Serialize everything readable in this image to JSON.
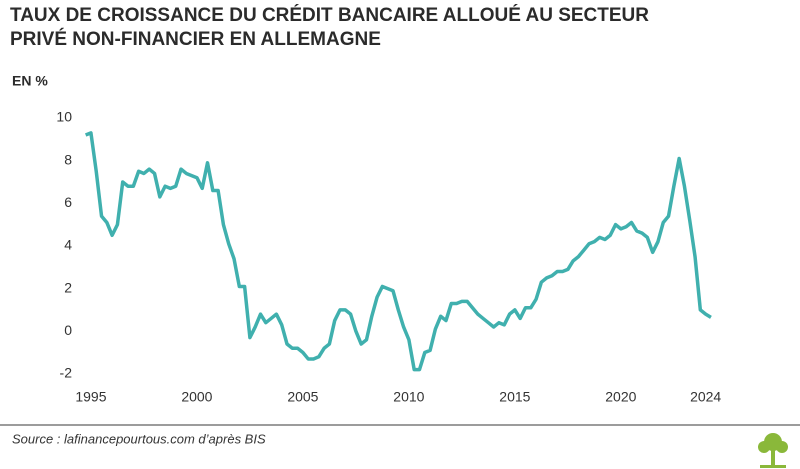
{
  "chart_data": {
    "type": "line",
    "title": "TAUX DE CROISSANCE DU CRÉDIT BANCAIRE ALLOUÉ AU SECTEUR PRIVÉ NON-FINANCIER EN ALLEMAGNE",
    "y_label": "EN %",
    "source": "Source : lafinancepourtous.com d’après BIS",
    "x": [
      1994.75,
      1995,
      1995.25,
      1995.5,
      1995.75,
      1996,
      1996.25,
      1996.5,
      1996.75,
      1997,
      1997.25,
      1997.5,
      1997.75,
      1998,
      1998.25,
      1998.5,
      1998.75,
      1999,
      1999.25,
      1999.5,
      1999.75,
      2000,
      2000.25,
      2000.5,
      2000.75,
      2001,
      2001.25,
      2001.5,
      2001.75,
      2002,
      2002.25,
      2002.5,
      2002.75,
      2003,
      2003.25,
      2003.5,
      2003.75,
      2004,
      2004.25,
      2004.5,
      2004.75,
      2005,
      2005.25,
      2005.5,
      2005.75,
      2006,
      2006.25,
      2006.5,
      2006.75,
      2007,
      2007.25,
      2007.5,
      2007.75,
      2008,
      2008.25,
      2008.5,
      2008.75,
      2009,
      2009.25,
      2009.5,
      2009.75,
      2010,
      2010.25,
      2010.5,
      2010.75,
      2011,
      2011.25,
      2011.5,
      2011.75,
      2012,
      2012.25,
      2012.5,
      2012.75,
      2013,
      2013.25,
      2013.5,
      2013.75,
      2014,
      2014.25,
      2014.5,
      2014.75,
      2015,
      2015.25,
      2015.5,
      2015.75,
      2016,
      2016.25,
      2016.5,
      2016.75,
      2017,
      2017.25,
      2017.5,
      2017.75,
      2018,
      2018.25,
      2018.5,
      2018.75,
      2019,
      2019.25,
      2019.5,
      2019.75,
      2020,
      2020.25,
      2020.5,
      2020.75,
      2021,
      2021.25,
      2021.5,
      2021.75,
      2022,
      2022.25,
      2022.5,
      2022.75,
      2023,
      2023.25,
      2023.5,
      2023.75,
      2024,
      2024.25
    ],
    "series": [
      {
        "color": "#40b0ae",
        "values": [
          9.2,
          9.3,
          7.5,
          5.4,
          5.1,
          4.5,
          5.0,
          7.0,
          6.8,
          6.8,
          7.5,
          7.4,
          7.6,
          7.4,
          6.3,
          6.8,
          6.7,
          6.8,
          7.6,
          7.4,
          7.3,
          7.2,
          6.7,
          7.9,
          6.6,
          6.6,
          5.0,
          4.1,
          3.4,
          2.1,
          2.1,
          -0.3,
          0.2,
          0.8,
          0.4,
          0.6,
          0.8,
          0.3,
          -0.6,
          -0.8,
          -0.8,
          -1.0,
          -1.3,
          -1.3,
          -1.2,
          -0.8,
          -0.6,
          0.5,
          1.0,
          1.0,
          0.8,
          0.0,
          -0.6,
          -0.4,
          0.7,
          1.6,
          2.1,
          2.0,
          1.9,
          1.0,
          0.2,
          -0.4,
          -1.8,
          -1.8,
          -1.0,
          -0.9,
          0.1,
          0.7,
          0.5,
          1.3,
          1.3,
          1.4,
          1.4,
          1.1,
          0.8,
          0.6,
          0.4,
          0.2,
          0.4,
          0.3,
          0.8,
          1.0,
          0.6,
          1.1,
          1.1,
          1.5,
          2.3,
          2.5,
          2.6,
          2.8,
          2.8,
          2.9,
          3.3,
          3.5,
          3.8,
          4.1,
          4.2,
          4.4,
          4.3,
          4.5,
          5.0,
          4.8,
          4.9,
          5.1,
          4.7,
          4.6,
          4.4,
          3.7,
          4.2,
          5.1,
          5.4,
          6.8,
          8.1,
          6.8,
          5.2,
          3.5,
          1.0,
          0.8,
          0.65
        ]
      }
    ],
    "xlim": [
      1994.72,
      2024.3
    ],
    "ylim": [
      -2.1,
      10
    ],
    "xticks": [
      1995,
      2000,
      2005,
      2010,
      2015,
      2020,
      2024
    ],
    "yticks": [
      -2,
      0,
      2,
      4,
      6,
      8,
      10
    ]
  }
}
